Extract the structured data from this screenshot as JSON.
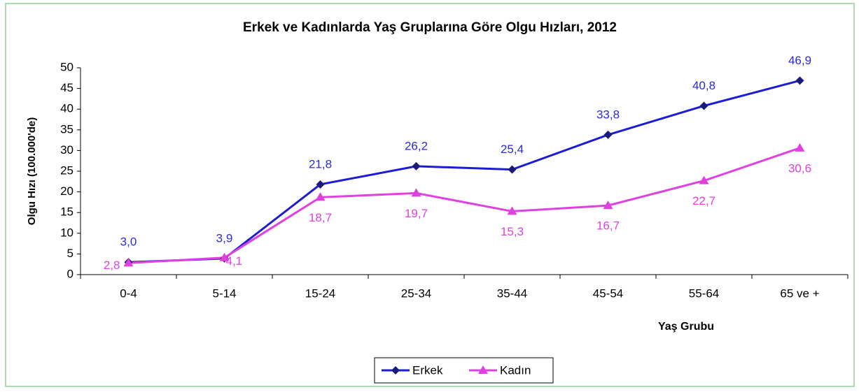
{
  "chart_data": {
    "type": "line",
    "title": "Erkek ve Kadınlarda Yaş Gruplarına Göre Olgu Hızları, 2012",
    "x_label": "Yaş Grubu",
    "y_label": "Olgu Hızı (100.000'de)",
    "categories": [
      "0-4",
      "5-14",
      "15-24",
      "25-34",
      "35-44",
      "45-54",
      "55-64",
      "65 ve +"
    ],
    "series": [
      {
        "name": "Erkek",
        "color": "#1c1cd4",
        "marker": "diamond",
        "marker_color": "#1a1a7a",
        "label_color": "#2a2ae0",
        "values": [
          3.0,
          3.9,
          21.8,
          26.2,
          25.4,
          33.8,
          40.8,
          46.9
        ],
        "value_labels": [
          "3,0",
          "3,9",
          "21,8",
          "26,2",
          "25,4",
          "33,8",
          "40,8",
          "46,9"
        ]
      },
      {
        "name": "Kadın",
        "color": "#e040e0",
        "marker": "triangle",
        "marker_color": "#e040e0",
        "label_color": "#e040e0",
        "values": [
          2.8,
          4.1,
          18.7,
          19.7,
          15.3,
          16.7,
          22.7,
          30.6
        ],
        "value_labels": [
          "2,8",
          "4,1",
          "18,7",
          "19,7",
          "15,3",
          "16,7",
          "22,7",
          "30,6"
        ]
      }
    ],
    "ylim": [
      0,
      50
    ],
    "yticks": [
      0,
      5,
      10,
      15,
      20,
      25,
      30,
      35,
      40,
      45,
      50
    ],
    "grid": false,
    "legend": "bottom"
  }
}
